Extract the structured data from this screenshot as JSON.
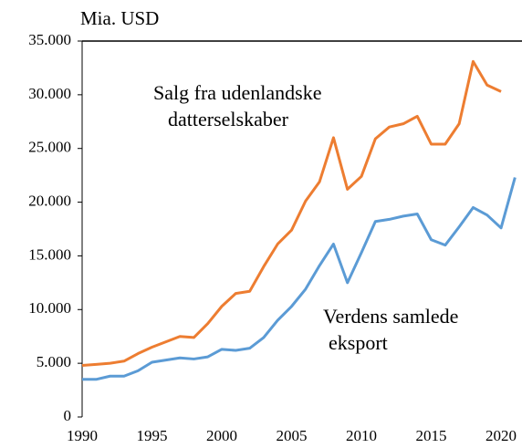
{
  "chart_data": {
    "type": "line",
    "y_label": "Mia. USD",
    "annotations": [
      "Salg fra udenlandske",
      "datterselskaber",
      "Verdens samlede",
      "eksport"
    ],
    "x": [
      1990,
      1991,
      1992,
      1993,
      1994,
      1995,
      1996,
      1997,
      1998,
      1999,
      2000,
      2001,
      2002,
      2003,
      2004,
      2005,
      2006,
      2007,
      2008,
      2009,
      2010,
      2011,
      2012,
      2013,
      2014,
      2015,
      2016,
      2017,
      2018,
      2019,
      2020,
      2021
    ],
    "series": [
      {
        "color": "#ed7d31",
        "values": [
          4800,
          4900,
          5000,
          5200,
          5900,
          6500,
          7000,
          7500,
          7400,
          8700,
          10300,
          11500,
          11700,
          14000,
          16100,
          17400,
          20100,
          21900,
          26000,
          21200,
          22400,
          25900,
          27000,
          27300,
          28000,
          25400,
          25400,
          27300,
          33100,
          30900,
          30300,
          null
        ]
      },
      {
        "color": "#5b9bd5",
        "values": [
          3500,
          3500,
          3800,
          3800,
          4300,
          5100,
          5300,
          5500,
          5400,
          5600,
          6300,
          6200,
          6400,
          7400,
          9000,
          10300,
          11900,
          14100,
          16100,
          12500,
          15300,
          18200,
          18400,
          18700,
          18900,
          16500,
          16000,
          17700,
          19500,
          18800,
          17600,
          22300
        ]
      }
    ],
    "xlim": [
      1990,
      2021.5
    ],
    "xticks": [
      1990,
      1995,
      2000,
      2005,
      2010,
      2015,
      2020
    ],
    "ylim": [
      0,
      35000
    ],
    "yticks": [
      0,
      {
        "value": 5000,
        "label": "5.000"
      },
      {
        "value": 10000,
        "label": "10.000"
      },
      {
        "value": 15000,
        "label": "15.000"
      },
      {
        "value": 20000,
        "label": "20.000"
      },
      {
        "value": 25000,
        "label": "25.000"
      },
      {
        "value": 30000,
        "label": "30.000"
      },
      {
        "value": 35000,
        "label": "35.000"
      }
    ],
    "grid": false
  }
}
